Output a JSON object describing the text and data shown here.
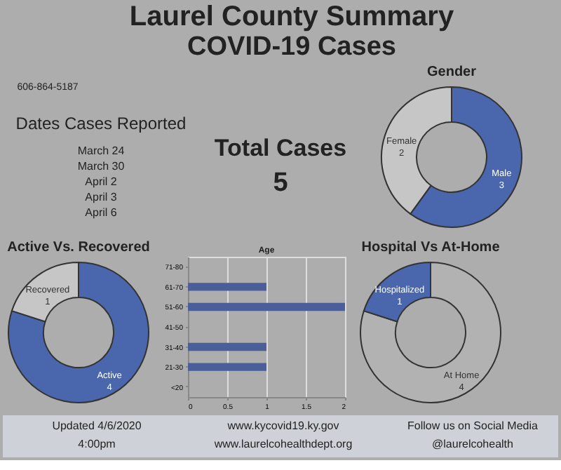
{
  "chart_data": [
    {
      "type": "other",
      "title": "Laurel County Summary",
      "subtitle": "COVID-19 Cases"
    },
    {
      "type": "other",
      "annotations": [
        "606-864-5187",
        "Dates Cases Reported",
        "March 24",
        "March 30",
        "April 2",
        "April 3",
        "April 6",
        "Total Cases",
        "5"
      ]
    },
    {
      "type": "donut",
      "title": "Gender",
      "categories": [
        "Male",
        "Female"
      ],
      "values": [
        3,
        2
      ],
      "colors": [
        "#4a66ad",
        "#c6c6c6"
      ],
      "data_labels": true
    },
    {
      "type": "donut",
      "title": "Active Vs. Recovered",
      "categories": [
        "Active",
        "Recovered"
      ],
      "values": [
        4,
        1
      ],
      "colors": [
        "#4a66ad",
        "#c6c6c6"
      ],
      "data_labels": true
    },
    {
      "type": "bar",
      "orientation": "horizontal",
      "title": "Age",
      "categories": [
        "71-80",
        "61-70",
        "51-60",
        "41-50",
        "31-40",
        "21-30",
        "<20"
      ],
      "values": [
        0,
        1,
        2,
        0,
        1,
        1,
        0
      ],
      "color": "#4a5e9a",
      "xlim": [
        0,
        2
      ],
      "xticks": [
        0,
        0.5,
        1,
        1.5,
        2
      ],
      "grid": "x"
    },
    {
      "type": "donut",
      "title": "Hospital Vs At-Home",
      "categories": [
        "At Home",
        "Hospitalized"
      ],
      "values": [
        4,
        1
      ],
      "colors": [
        "#b2b2b2",
        "#4a66ad"
      ],
      "data_labels": true
    },
    {
      "type": "other",
      "annotations": [
        "Updated 4/6/2020",
        "4:00pm",
        "www.kycovid19.ky.gov",
        "www.laurelcohealthdept.org",
        "Follow us on Social Media",
        "@laurelcohealth"
      ]
    }
  ]
}
